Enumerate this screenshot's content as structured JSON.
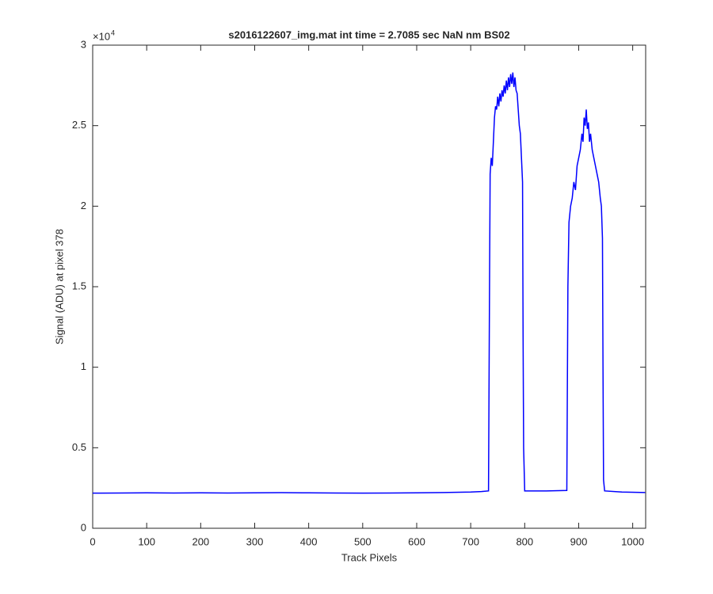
{
  "chart_data": {
    "type": "line",
    "title": "s2016122607_img.mat int time = 2.7085 sec  NaN nm BS02",
    "x_label": "Track Pixels",
    "y_label": "Signal (ADU) at pixel 378",
    "y_multiplier": {
      "base": "×10",
      "exponent": "4"
    },
    "color": "#0000ff",
    "x": [
      0,
      50,
      100,
      150,
      200,
      250,
      300,
      350,
      400,
      450,
      500,
      550,
      600,
      650,
      700,
      720,
      733,
      735,
      736,
      738,
      740,
      742,
      744,
      746,
      748,
      750,
      752,
      754,
      756,
      758,
      760,
      762,
      764,
      766,
      768,
      770,
      772,
      774,
      776,
      778,
      780,
      782,
      784,
      786,
      788,
      790,
      792,
      794,
      796,
      797,
      798,
      800,
      840,
      878,
      880,
      882,
      885,
      888,
      891,
      894,
      897,
      900,
      903,
      906,
      908,
      910,
      912,
      914,
      916,
      918,
      920,
      922,
      925,
      928,
      931,
      934,
      937,
      940,
      942,
      944,
      945,
      946,
      948,
      980,
      1023
    ],
    "values": [
      0.218,
      0.219,
      0.22,
      0.219,
      0.22,
      0.219,
      0.22,
      0.221,
      0.22,
      0.219,
      0.218,
      0.219,
      0.22,
      0.222,
      0.225,
      0.228,
      0.232,
      1.6,
      2.2,
      2.3,
      2.25,
      2.4,
      2.55,
      2.62,
      2.6,
      2.68,
      2.62,
      2.7,
      2.65,
      2.72,
      2.68,
      2.75,
      2.7,
      2.78,
      2.72,
      2.8,
      2.74,
      2.82,
      2.76,
      2.83,
      2.74,
      2.8,
      2.72,
      2.7,
      2.6,
      2.5,
      2.45,
      2.3,
      2.15,
      1.2,
      0.5,
      0.232,
      0.232,
      0.235,
      1.5,
      1.9,
      2.0,
      2.05,
      2.15,
      2.1,
      2.25,
      2.3,
      2.35,
      2.45,
      2.4,
      2.55,
      2.5,
      2.6,
      2.48,
      2.52,
      2.4,
      2.45,
      2.35,
      2.3,
      2.25,
      2.2,
      2.15,
      2.05,
      2.0,
      1.8,
      1.0,
      0.3,
      0.232,
      0.225,
      0.222
    ],
    "xlim": [
      0,
      1024
    ],
    "xticks": [
      0,
      100,
      200,
      300,
      400,
      500,
      600,
      700,
      800,
      900,
      1000
    ],
    "ylim": [
      0,
      3
    ],
    "yticks": [
      0,
      0.5,
      1,
      1.5,
      2,
      2.5,
      3
    ]
  }
}
